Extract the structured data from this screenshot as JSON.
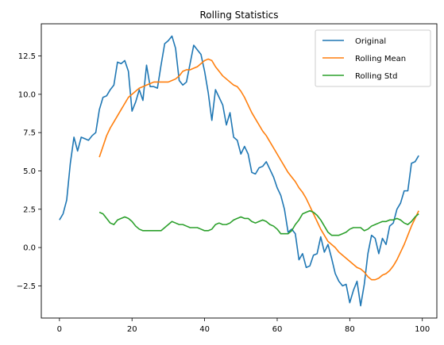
{
  "chart_data": {
    "type": "line",
    "title": "Rolling Statistics",
    "xlabel": "",
    "ylabel": "",
    "xlim": [
      -5,
      104
    ],
    "ylim": [
      -4.6,
      14.6
    ],
    "xticks": [
      0,
      20,
      40,
      60,
      80,
      100
    ],
    "xtick_labels": [
      "0",
      "20",
      "40",
      "60",
      "80",
      "100"
    ],
    "yticks": [
      -2.5,
      0.0,
      2.5,
      5.0,
      7.5,
      10.0,
      12.5
    ],
    "ytick_labels": [
      "−2.5",
      "0.0",
      "2.5",
      "5.0",
      "7.5",
      "10.0",
      "12.5"
    ],
    "grid": false,
    "legend": "top-right",
    "series": [
      {
        "name": "Original",
        "color": "#1f77b4",
        "x_start": 0,
        "values": [
          1.8,
          2.2,
          3.1,
          5.5,
          7.2,
          6.3,
          7.2,
          7.1,
          7.0,
          7.3,
          7.5,
          9.0,
          9.8,
          9.9,
          10.3,
          10.6,
          12.1,
          12.0,
          12.2,
          11.5,
          8.9,
          9.5,
          10.3,
          9.6,
          11.9,
          10.5,
          10.5,
          10.4,
          11.9,
          13.3,
          13.5,
          13.8,
          13.0,
          10.9,
          10.6,
          10.8,
          12.0,
          13.2,
          12.9,
          12.6,
          11.5,
          10.1,
          8.3,
          10.3,
          9.8,
          9.3,
          8.0,
          8.8,
          7.2,
          7.0,
          6.1,
          6.6,
          6.1,
          4.9,
          4.8,
          5.2,
          5.3,
          5.6,
          5.1,
          4.6,
          3.9,
          3.4,
          2.5,
          1.0,
          1.2,
          0.9,
          -0.8,
          -0.4,
          -1.3,
          -1.2,
          -0.5,
          -0.4,
          0.7,
          -0.3,
          0.2,
          -0.7,
          -1.7,
          -2.2,
          -2.5,
          -2.4,
          -3.6,
          -2.8,
          -2.2,
          -3.8,
          -2.4,
          -0.4,
          0.8,
          0.6,
          -0.4,
          0.6,
          0.2,
          1.4,
          1.6,
          2.5,
          2.9,
          3.7,
          3.7,
          5.5,
          5.6,
          6.0
        ]
      },
      {
        "name": "Rolling Mean",
        "color": "#ff7f0e",
        "x_start": 11,
        "values": [
          5.9,
          6.6,
          7.3,
          7.8,
          8.2,
          8.6,
          9.0,
          9.4,
          9.8,
          10.0,
          10.2,
          10.4,
          10.5,
          10.6,
          10.7,
          10.8,
          10.8,
          10.8,
          10.8,
          10.8,
          10.9,
          11.0,
          11.2,
          11.5,
          11.6,
          11.6,
          11.7,
          11.8,
          12.0,
          12.2,
          12.3,
          12.2,
          11.8,
          11.5,
          11.2,
          11.0,
          10.8,
          10.6,
          10.5,
          10.2,
          9.8,
          9.3,
          8.8,
          8.4,
          8.0,
          7.6,
          7.3,
          6.9,
          6.5,
          6.1,
          5.7,
          5.3,
          4.9,
          4.6,
          4.3,
          3.9,
          3.6,
          3.2,
          2.7,
          2.2,
          1.7,
          1.2,
          0.8,
          0.4,
          0.2,
          0.0,
          -0.3,
          -0.5,
          -0.7,
          -0.9,
          -1.1,
          -1.3,
          -1.4,
          -1.6,
          -1.9,
          -2.1,
          -2.1,
          -2.0,
          -1.8,
          -1.7,
          -1.5,
          -1.2,
          -0.8,
          -0.3,
          0.2,
          0.8,
          1.4,
          1.9,
          2.4
        ]
      },
      {
        "name": "Rolling Std",
        "color": "#2ca02c",
        "x_start": 11,
        "values": [
          2.3,
          2.2,
          1.9,
          1.6,
          1.5,
          1.8,
          1.9,
          2.0,
          1.9,
          1.7,
          1.4,
          1.2,
          1.1,
          1.1,
          1.1,
          1.1,
          1.1,
          1.1,
          1.3,
          1.5,
          1.7,
          1.6,
          1.5,
          1.5,
          1.4,
          1.3,
          1.3,
          1.3,
          1.2,
          1.1,
          1.1,
          1.2,
          1.5,
          1.6,
          1.5,
          1.5,
          1.6,
          1.8,
          1.9,
          2.0,
          1.9,
          1.9,
          1.7,
          1.6,
          1.7,
          1.8,
          1.7,
          1.5,
          1.4,
          1.2,
          0.9,
          0.9,
          0.9,
          1.1,
          1.5,
          1.8,
          2.2,
          2.3,
          2.4,
          2.3,
          2.1,
          1.8,
          1.4,
          1.0,
          0.8,
          0.8,
          0.8,
          0.9,
          1.0,
          1.2,
          1.3,
          1.3,
          1.3,
          1.1,
          1.2,
          1.4,
          1.5,
          1.6,
          1.7,
          1.7,
          1.8,
          1.8,
          1.9,
          1.8,
          1.6,
          1.5,
          1.7,
          2.0,
          2.2
        ]
      }
    ]
  }
}
